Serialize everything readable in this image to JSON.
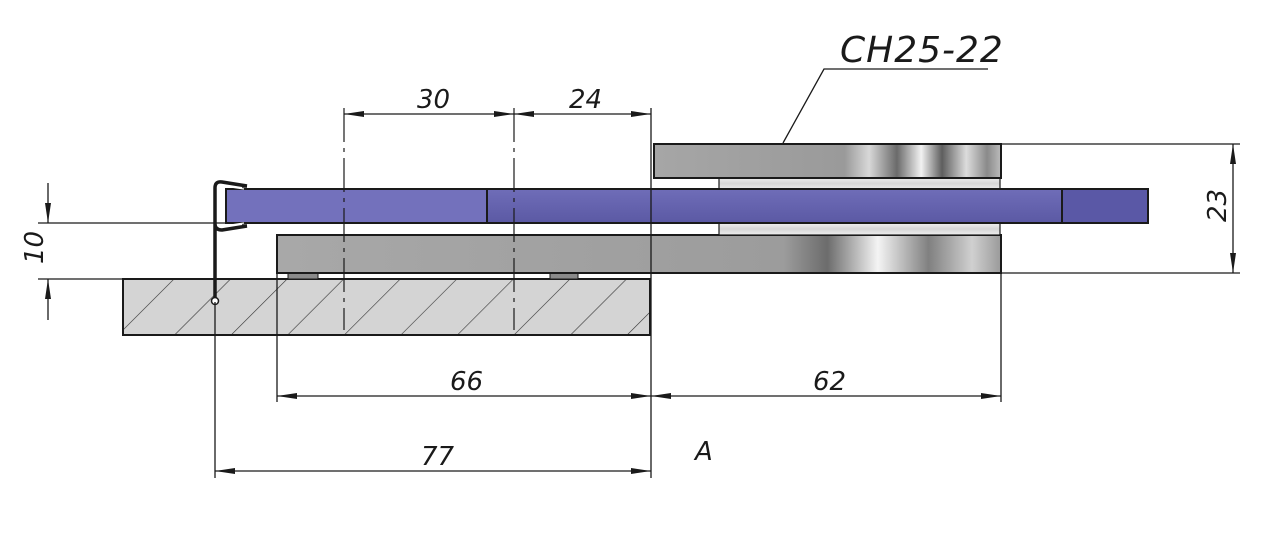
{
  "callout": {
    "label": "CH25-22"
  },
  "view_label": "A",
  "dimensions": {
    "d30": "30",
    "d24": "24",
    "d23": "23",
    "d10": "10",
    "d66": "66",
    "d62": "62",
    "d77": "77"
  },
  "colors": {
    "glass": "#6361ac",
    "glass_light": "#7371bc",
    "wall": "#d4d4d4",
    "metal_dark": "#8c8c8c",
    "metal_light": "#e6e6e6",
    "line": "#1a1a1a"
  }
}
